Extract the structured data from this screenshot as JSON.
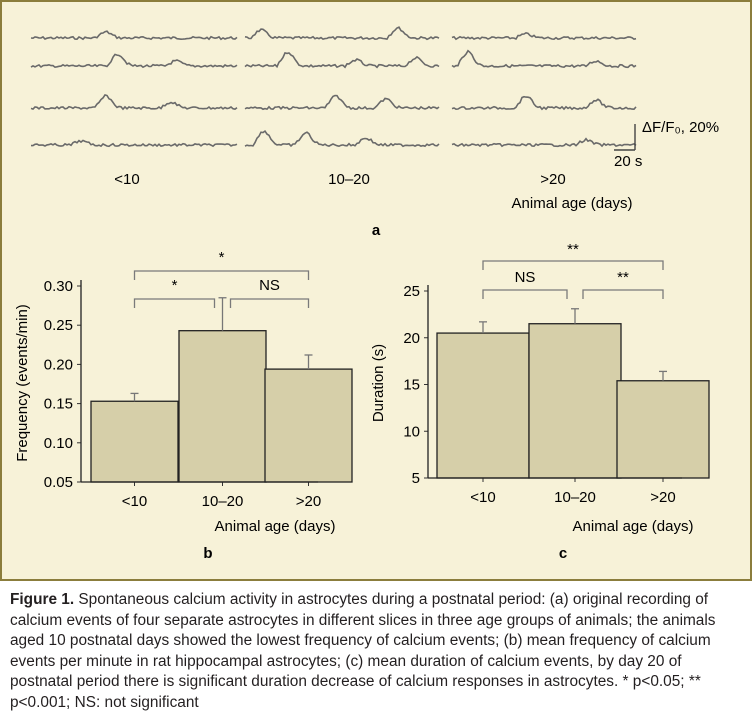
{
  "panel_a": {
    "letter": "a",
    "group_labels": [
      "<10",
      "10–20",
      ">20"
    ],
    "xlabel": "Animal age (days)",
    "scale_bar": {
      "amplitude_label": "ΔF/F₀, 20%",
      "time_label": "20 s"
    }
  },
  "chart_data": [
    {
      "type": "bar",
      "panel": "b",
      "categories": [
        "<10",
        "10–20",
        ">20"
      ],
      "values": [
        0.153,
        0.243,
        0.194
      ],
      "errors": [
        0.01,
        0.042,
        0.018
      ],
      "xlabel": "Animal age (days)",
      "ylabel": "Frequency (events/min)",
      "ylim": [
        0.05,
        0.3
      ],
      "yticks": [
        "0.05",
        "0.10",
        "0.15",
        "0.20",
        "0.25",
        "0.30"
      ],
      "bar_color": "#d6cfa9",
      "significance": [
        {
          "from": 0,
          "to": 2,
          "label": "*"
        },
        {
          "from": 0,
          "to": 1,
          "label": "*"
        },
        {
          "from": 1,
          "to": 2,
          "label": "NS"
        }
      ]
    },
    {
      "type": "bar",
      "panel": "c",
      "categories": [
        "<10",
        "10–20",
        ">20"
      ],
      "values": [
        20.5,
        21.5,
        15.4
      ],
      "errors": [
        1.2,
        1.6,
        1.0
      ],
      "xlabel": "Animal age (days)",
      "ylabel": "Duration (s)",
      "ylim": [
        5,
        25
      ],
      "yticks": [
        "5",
        "10",
        "15",
        "20",
        "25"
      ],
      "bar_color": "#d6cfa9",
      "significance": [
        {
          "from": 0,
          "to": 2,
          "label": "**"
        },
        {
          "from": 0,
          "to": 1,
          "label": "NS"
        },
        {
          "from": 1,
          "to": 2,
          "label": "**"
        }
      ]
    }
  ],
  "caption": {
    "label": "Figure 1.",
    "text": " Spontaneous calcium activity in astrocytes during a postnatal period: (a) original recording of calcium events of four separate astrocytes in different slices in three age groups of animals; the animals aged 10 postnatal days showed the lowest frequency of calcium events; (b) mean frequency of calcium events per minute in rat hippocampal astrocytes; (c) mean duration of calcium events, by day 20 of postnatal period there is significant duration decrease of calcium responses in astrocytes. * p<0.05; ** p<0.001; NS: not significant"
  },
  "colors": {
    "panel_bg": "#f7f2d8",
    "panel_border": "#8b7d3c",
    "trace": "#6a6a6a",
    "bracket": "#7a7a7a"
  }
}
